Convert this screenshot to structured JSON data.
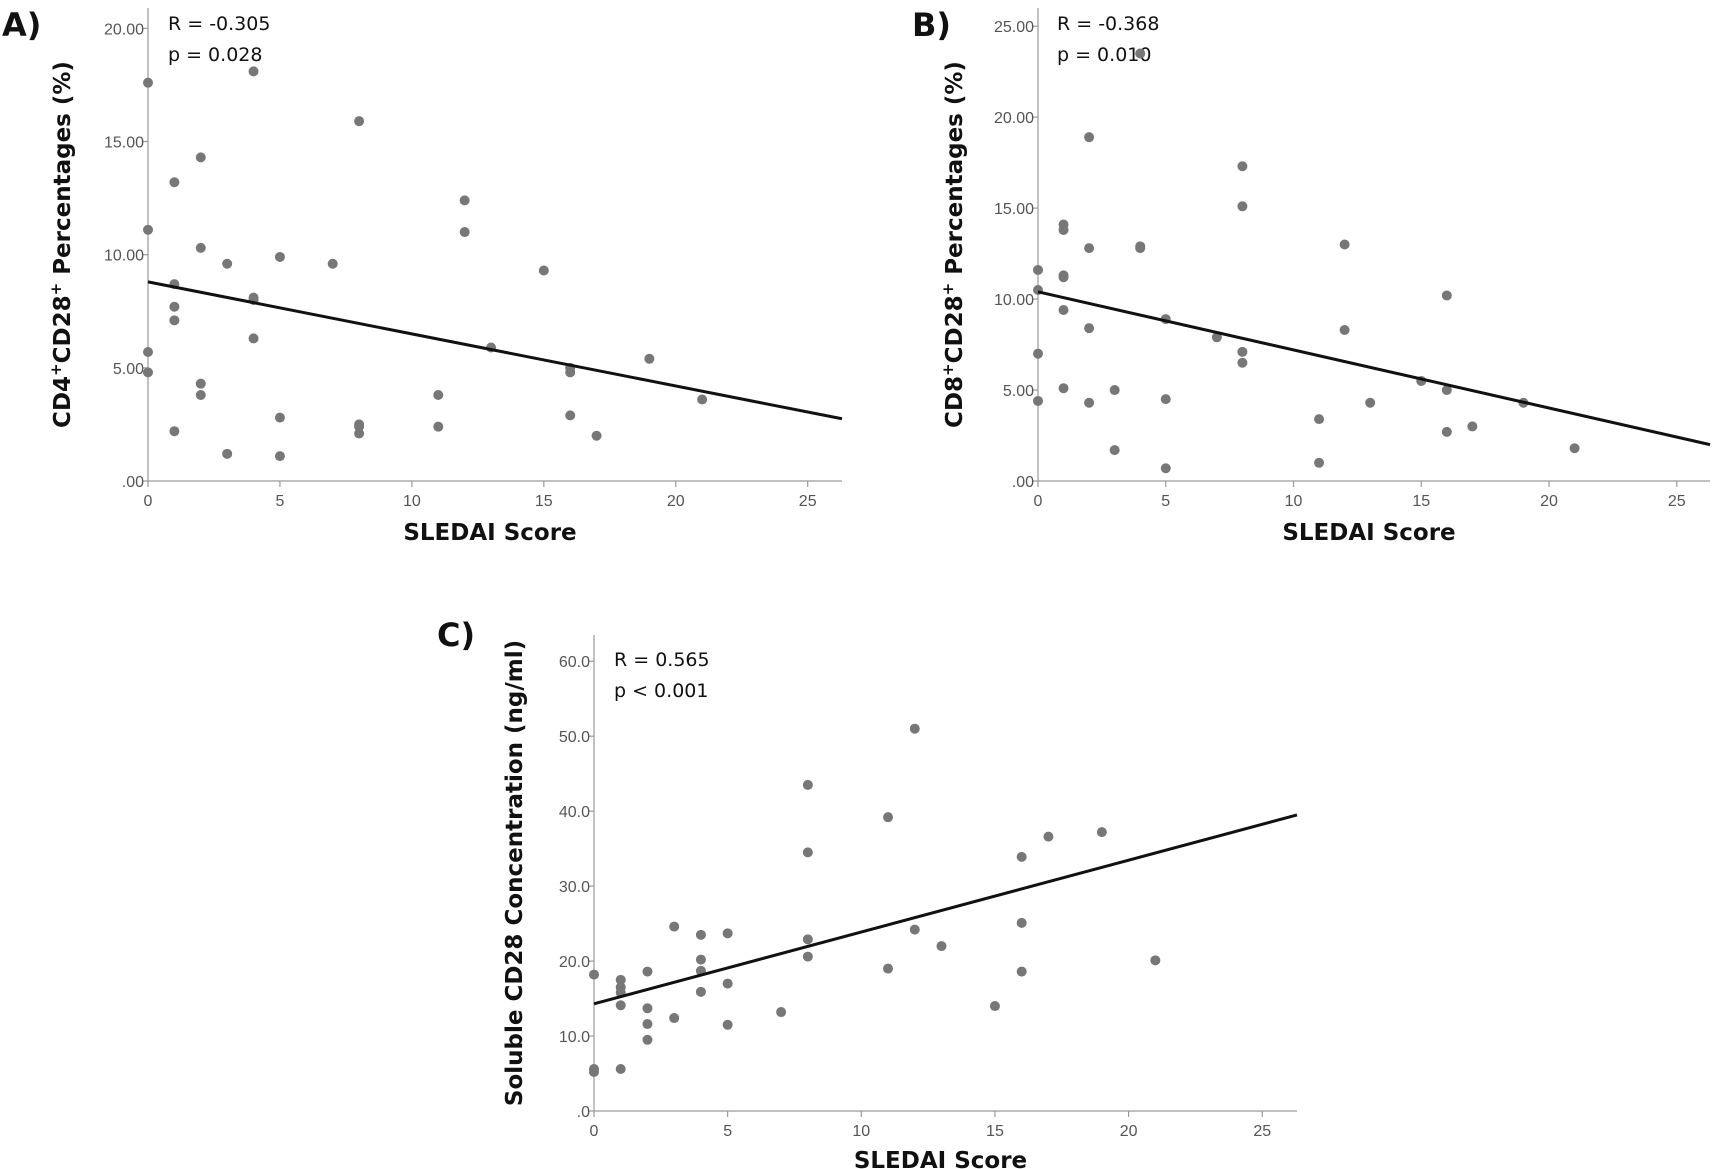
{
  "colors": {
    "point": "#777777",
    "fit_line": "#111111",
    "axis": "#9a9a9a",
    "text": "#111111"
  },
  "chart_data": [
    {
      "type": "scatter",
      "panel_label": "A)",
      "stats": [
        "R = -0.305",
        "p = 0.028"
      ],
      "title": "",
      "xlabel": "SLEDAI Score",
      "ylabel_parts": [
        {
          "text": "CD4",
          "sup": false
        },
        {
          "text": "+",
          "sup": true
        },
        {
          "text": "CD28",
          "sup": false
        },
        {
          "text": "+",
          "sup": true
        },
        {
          "text": " Percentages (%)",
          "sup": false
        }
      ],
      "xlim": [
        0,
        26.3
      ],
      "ylim": [
        0,
        20.9
      ],
      "x_ticks": [
        0,
        5,
        10,
        15,
        20,
        25
      ],
      "x_tick_labels": [
        "0",
        "5",
        "10",
        "15",
        "20",
        "25"
      ],
      "y_ticks": [
        0,
        5,
        10,
        15,
        20
      ],
      "y_tick_labels": [
        ".00",
        "5.00",
        "10.00",
        "15.00",
        "20.00"
      ],
      "fit_line": {
        "x": [
          0,
          26.3
        ],
        "y": [
          8.8,
          2.75
        ]
      },
      "points": {
        "x": [
          0,
          0,
          0,
          0,
          1,
          1,
          1,
          1,
          1,
          2,
          2,
          2,
          2,
          3,
          3,
          4,
          4,
          4,
          4,
          5,
          5,
          5,
          7,
          8,
          8,
          8,
          8,
          11,
          11,
          12,
          12,
          13,
          15,
          16,
          16,
          16,
          17,
          19,
          21
        ],
        "y": [
          17.6,
          11.1,
          5.7,
          4.8,
          13.2,
          8.7,
          7.7,
          7.1,
          2.2,
          14.3,
          10.3,
          4.3,
          3.8,
          9.6,
          1.2,
          18.1,
          8.1,
          6.3,
          8.0,
          9.9,
          2.8,
          1.1,
          9.6,
          15.9,
          2.5,
          2.1,
          2.4,
          3.8,
          2.4,
          12.4,
          11.0,
          5.9,
          9.3,
          5.0,
          4.8,
          2.9,
          2.0,
          5.4,
          3.6
        ]
      }
    },
    {
      "type": "scatter",
      "panel_label": "B)",
      "stats": [
        "R = -0.368",
        "p = 0.010"
      ],
      "title": "",
      "xlabel": "SLEDAI Score",
      "ylabel_parts": [
        {
          "text": "CD8",
          "sup": false
        },
        {
          "text": "+",
          "sup": true
        },
        {
          "text": "CD28",
          "sup": false
        },
        {
          "text": "+",
          "sup": true
        },
        {
          "text": " Percentages (%)",
          "sup": false
        }
      ],
      "xlim": [
        0,
        26.3
      ],
      "ylim": [
        0,
        26.0
      ],
      "x_ticks": [
        0,
        5,
        10,
        15,
        20,
        25
      ],
      "x_tick_labels": [
        "0",
        "5",
        "10",
        "15",
        "20",
        "25"
      ],
      "y_ticks": [
        0,
        5,
        10,
        15,
        20,
        25
      ],
      "y_tick_labels": [
        ".00",
        "5.00",
        "10.00",
        "15.00",
        "20.00",
        "25.00"
      ],
      "fit_line": {
        "x": [
          0,
          26.3
        ],
        "y": [
          10.4,
          2.0
        ]
      },
      "points": {
        "x": [
          0,
          0,
          0,
          0,
          1,
          1,
          1,
          1,
          1,
          1,
          2,
          2,
          2,
          2,
          3,
          3,
          4,
          4,
          4,
          5,
          5,
          5,
          7,
          8,
          8,
          8,
          8,
          11,
          11,
          12,
          12,
          13,
          15,
          16,
          16,
          16,
          17,
          19,
          21
        ],
        "y": [
          11.6,
          10.5,
          7.0,
          4.4,
          14.1,
          13.8,
          11.3,
          11.2,
          9.4,
          5.1,
          18.9,
          12.8,
          8.4,
          4.3,
          5.0,
          1.7,
          23.5,
          12.9,
          12.8,
          8.9,
          4.5,
          0.7,
          7.9,
          17.3,
          15.1,
          7.1,
          6.5,
          3.4,
          1.0,
          13.0,
          8.3,
          4.3,
          5.5,
          10.2,
          5.0,
          2.7,
          3.0,
          4.3,
          1.8
        ]
      }
    },
    {
      "type": "scatter",
      "panel_label": "C)",
      "stats": [
        "R = 0.565",
        "p < 0.001"
      ],
      "title": "",
      "xlabel": "SLEDAI Score",
      "ylabel_parts": [
        {
          "text": "Soluble CD28 Concentration (ng/ml)",
          "sup": false
        }
      ],
      "xlim": [
        0,
        26.3
      ],
      "ylim": [
        0,
        63.5
      ],
      "x_ticks": [
        0,
        5,
        10,
        15,
        20,
        25
      ],
      "x_tick_labels": [
        "0",
        "5",
        "10",
        "15",
        "20",
        "25"
      ],
      "y_ticks": [
        0,
        10,
        20,
        30,
        40,
        50,
        60
      ],
      "y_tick_labels": [
        ".0",
        "10.0",
        "20.0",
        "30.0",
        "40.0",
        "50.0",
        "60.0"
      ],
      "fit_line": {
        "x": [
          0,
          26.3
        ],
        "y": [
          14.3,
          39.5
        ]
      },
      "points": {
        "x": [
          0,
          0,
          0,
          1,
          1,
          1,
          1,
          1,
          2,
          2,
          2,
          2,
          3,
          3,
          4,
          4,
          4,
          4,
          5,
          5,
          5,
          7,
          8,
          8,
          8,
          8,
          11,
          11,
          12,
          12,
          13,
          15,
          16,
          16,
          16,
          17,
          19,
          21
        ],
        "y": [
          18.2,
          5.6,
          5.2,
          17.5,
          16.5,
          15.8,
          14.1,
          5.6,
          18.6,
          13.7,
          11.6,
          9.5,
          24.6,
          12.4,
          23.5,
          20.2,
          18.7,
          15.9,
          23.7,
          17.0,
          11.5,
          13.2,
          43.5,
          34.5,
          22.9,
          20.6,
          39.2,
          19.0,
          51.0,
          24.2,
          22.0,
          14.0,
          33.9,
          25.1,
          18.6,
          36.6,
          37.2,
          20.1
        ]
      }
    }
  ]
}
